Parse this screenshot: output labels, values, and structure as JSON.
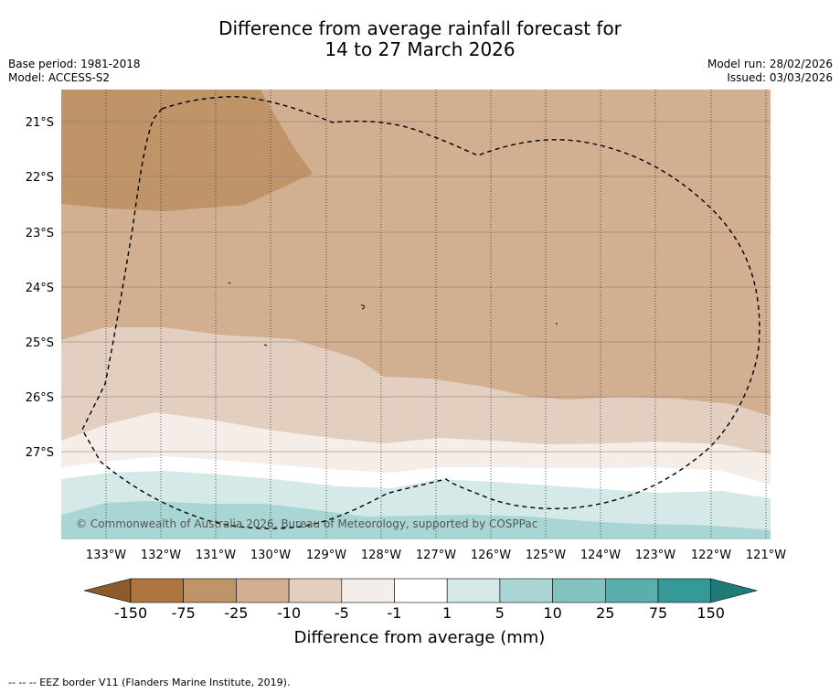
{
  "title": {
    "line1": "Difference from average rainfall forecast for",
    "line2": "14 to 27 March 2026"
  },
  "meta_left": {
    "base_period": "Base period: 1981-2018",
    "model": "Model: ACCESS-S2"
  },
  "meta_right": {
    "model_run": "Model run: 28/02/2026",
    "issued": "Issued: 03/03/2026"
  },
  "map": {
    "lat_labels": [
      "21°S",
      "22°S",
      "23°S",
      "24°S",
      "25°S",
      "26°S",
      "27°S"
    ],
    "lon_labels": [
      "133°W",
      "132°W",
      "131°W",
      "130°W",
      "129°W",
      "128°W",
      "127°W",
      "126°W",
      "125°W",
      "124°W",
      "123°W",
      "122°W",
      "121°W"
    ],
    "credit": "© Commonwealth of Australia 2026, Bureau of Meteorology, supported by COSPPac"
  },
  "colorbar": {
    "tick_labels": [
      "-150",
      "-75",
      "-25",
      "-10",
      "-5",
      "-1",
      "1",
      "5",
      "10",
      "25",
      "75",
      "150"
    ],
    "colors": [
      "#8c5a2b",
      "#ae763e",
      "#c09469",
      "#d1af90",
      "#e3cfbf",
      "#f4ede8",
      "#ffffff",
      "#d4e9e8",
      "#a9d6d5",
      "#82c2c1",
      "#5aafad",
      "#339a98",
      "#1f7a78"
    ],
    "title": "Difference from average (mm)"
  },
  "footnote": "--  --  -- EEZ border V11 (Flanders Marine Institute, 2019)."
}
